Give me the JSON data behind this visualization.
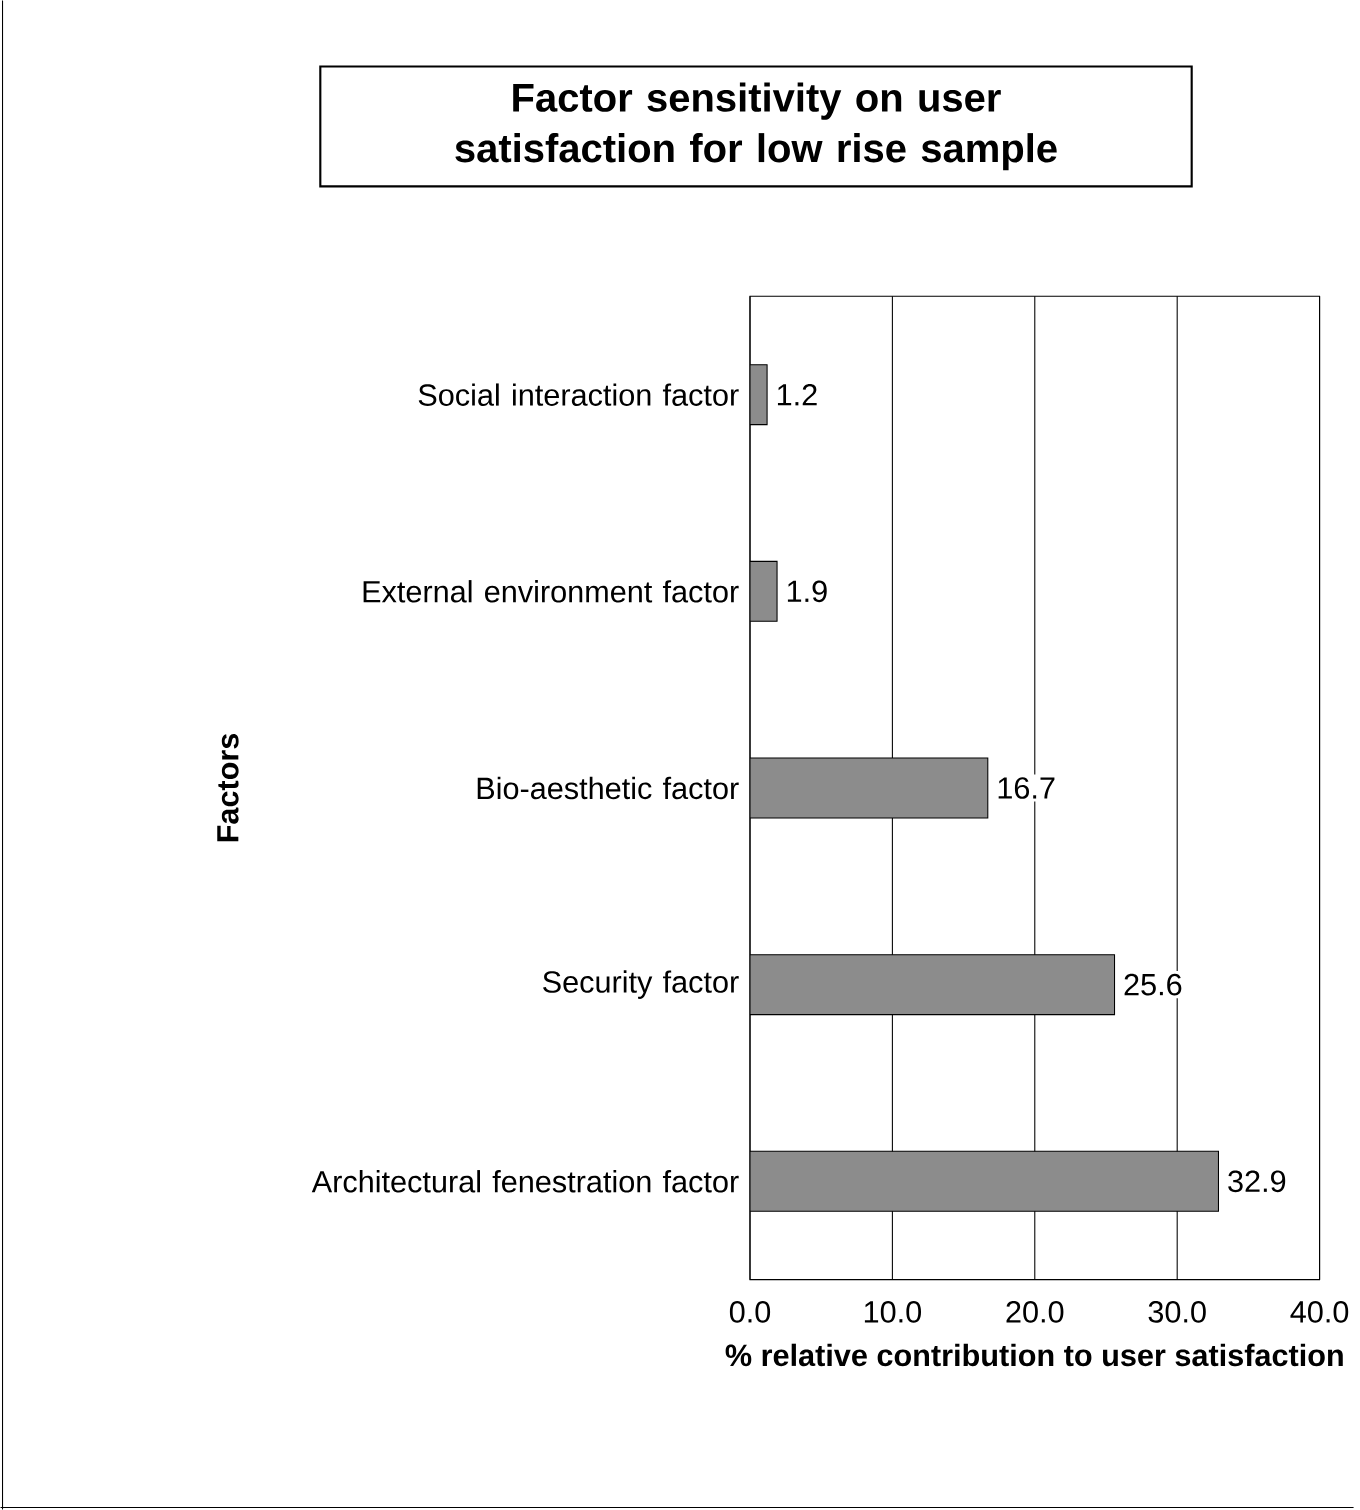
{
  "chart_data": {
    "type": "bar",
    "orientation": "horizontal",
    "title": "Factor sensitivity on user satisfaction for low rise sample",
    "xlabel": "% relative contribution to user satisfaction",
    "ylabel": "Factors",
    "categories": [
      "Social interaction factor",
      "External environment factor",
      "Bio-aesthetic factor",
      "Security factor",
      "Architectural fenestration factor"
    ],
    "values": [
      1.2,
      1.9,
      16.7,
      25.6,
      32.9
    ],
    "color": "#8c8c8c",
    "xlim": [
      0,
      40
    ],
    "xticks": [
      {
        "value": 0,
        "label": "0.0"
      },
      {
        "value": 10,
        "label": "10.0"
      },
      {
        "value": 20,
        "label": "20.0"
      },
      {
        "value": 30,
        "label": "30.0"
      },
      {
        "value": 40,
        "label": "40.0"
      }
    ],
    "grid": "x",
    "data_labels": true
  }
}
